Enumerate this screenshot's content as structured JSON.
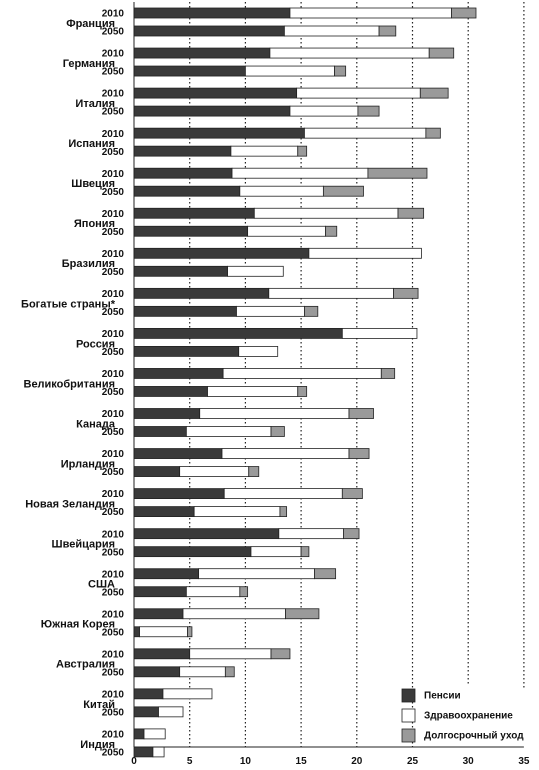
{
  "chart_data": {
    "type": "bar",
    "orientation": "horizontal",
    "stacked": true,
    "xlim": [
      0,
      35
    ],
    "x_ticks": [
      0,
      5,
      10,
      15,
      20,
      25,
      30,
      35
    ],
    "grid": "vertical dotted lines at 5-unit intervals",
    "legend_position": "bottom-right",
    "series": [
      {
        "name": "Пенсии",
        "color": "#3a3a3a"
      },
      {
        "name": "Здравоохранение",
        "color": "#ffffff"
      },
      {
        "name": "Долгосрочный уход",
        "color": "#9a9a9a"
      }
    ],
    "groups": [
      {
        "label": "Франция",
        "rows": [
          {
            "year": "2010",
            "values": [
              14.0,
              14.5,
              2.2
            ]
          },
          {
            "year": "2050",
            "values": [
              13.5,
              8.5,
              1.5
            ]
          }
        ]
      },
      {
        "label": "Германия",
        "rows": [
          {
            "year": "2010",
            "values": [
              12.2,
              14.3,
              2.2
            ]
          },
          {
            "year": "2050",
            "values": [
              10.0,
              8.0,
              1.0
            ]
          }
        ]
      },
      {
        "label": "Италия",
        "rows": [
          {
            "year": "2010",
            "values": [
              14.6,
              11.1,
              2.5
            ]
          },
          {
            "year": "2050",
            "values": [
              14.0,
              6.1,
              1.9
            ]
          }
        ]
      },
      {
        "label": "Испания",
        "rows": [
          {
            "year": "2010",
            "values": [
              15.3,
              10.9,
              1.3
            ]
          },
          {
            "year": "2050",
            "values": [
              8.7,
              6.0,
              0.8
            ]
          }
        ]
      },
      {
        "label": "Швеция",
        "rows": [
          {
            "year": "2010",
            "values": [
              8.8,
              12.2,
              5.3
            ]
          },
          {
            "year": "2050",
            "values": [
              9.5,
              7.5,
              3.6
            ]
          }
        ]
      },
      {
        "label": "Япония",
        "rows": [
          {
            "year": "2010",
            "values": [
              10.8,
              12.9,
              2.3
            ]
          },
          {
            "year": "2050",
            "values": [
              10.2,
              7.0,
              1.0
            ]
          }
        ]
      },
      {
        "label": "Бразилия",
        "rows": [
          {
            "year": "2010",
            "values": [
              15.7,
              10.1,
              0
            ]
          },
          {
            "year": "2050",
            "values": [
              8.4,
              5.0,
              0
            ]
          }
        ]
      },
      {
        "label": "Богатые страны*",
        "rows": [
          {
            "year": "2010",
            "values": [
              12.1,
              11.2,
              2.2
            ]
          },
          {
            "year": "2050",
            "values": [
              9.2,
              6.1,
              1.2
            ]
          }
        ]
      },
      {
        "label": "Россия",
        "rows": [
          {
            "year": "2010",
            "values": [
              18.7,
              6.7,
              0
            ]
          },
          {
            "year": "2050",
            "values": [
              9.4,
              3.5,
              0
            ]
          }
        ]
      },
      {
        "label": "Великобритания",
        "rows": [
          {
            "year": "2010",
            "values": [
              8.0,
              14.2,
              1.2
            ]
          },
          {
            "year": "2050",
            "values": [
              6.6,
              8.1,
              0.8
            ]
          }
        ]
      },
      {
        "label": "Канада",
        "rows": [
          {
            "year": "2010",
            "values": [
              5.9,
              13.4,
              2.2
            ]
          },
          {
            "year": "2050",
            "values": [
              4.7,
              7.6,
              1.2
            ]
          }
        ]
      },
      {
        "label": "Ирландия",
        "rows": [
          {
            "year": "2010",
            "values": [
              7.9,
              11.4,
              1.8
            ]
          },
          {
            "year": "2050",
            "values": [
              4.1,
              6.2,
              0.9
            ]
          }
        ]
      },
      {
        "label": "Новая Зеландия",
        "rows": [
          {
            "year": "2010",
            "values": [
              8.1,
              10.6,
              1.8
            ]
          },
          {
            "year": "2050",
            "values": [
              5.4,
              7.7,
              0.6
            ]
          }
        ]
      },
      {
        "label": "Швейцария",
        "rows": [
          {
            "year": "2010",
            "values": [
              13.0,
              5.8,
              1.4
            ]
          },
          {
            "year": "2050",
            "values": [
              10.5,
              4.5,
              0.7
            ]
          }
        ]
      },
      {
        "label": "США",
        "rows": [
          {
            "year": "2010",
            "values": [
              5.8,
              10.4,
              1.9
            ]
          },
          {
            "year": "2050",
            "values": [
              4.7,
              4.8,
              0.7
            ]
          }
        ]
      },
      {
        "label": "Южная Корея",
        "rows": [
          {
            "year": "2010",
            "values": [
              4.4,
              9.2,
              3.0
            ]
          },
          {
            "year": "2050",
            "values": [
              0.5,
              4.3,
              0.4
            ]
          }
        ]
      },
      {
        "label": "Австралия",
        "rows": [
          {
            "year": "2010",
            "values": [
              5.0,
              7.3,
              1.7
            ]
          },
          {
            "year": "2050",
            "values": [
              4.1,
              4.1,
              0.8
            ]
          }
        ]
      },
      {
        "label": "Китай",
        "rows": [
          {
            "year": "2010",
            "values": [
              2.6,
              4.4,
              0
            ]
          },
          {
            "year": "2050",
            "values": [
              2.2,
              2.2,
              0
            ]
          }
        ]
      },
      {
        "label": "Индия",
        "rows": [
          {
            "year": "2010",
            "values": [
              0.9,
              1.9,
              0
            ]
          },
          {
            "year": "2050",
            "values": [
              1.7,
              1.0,
              0
            ]
          }
        ]
      }
    ]
  }
}
